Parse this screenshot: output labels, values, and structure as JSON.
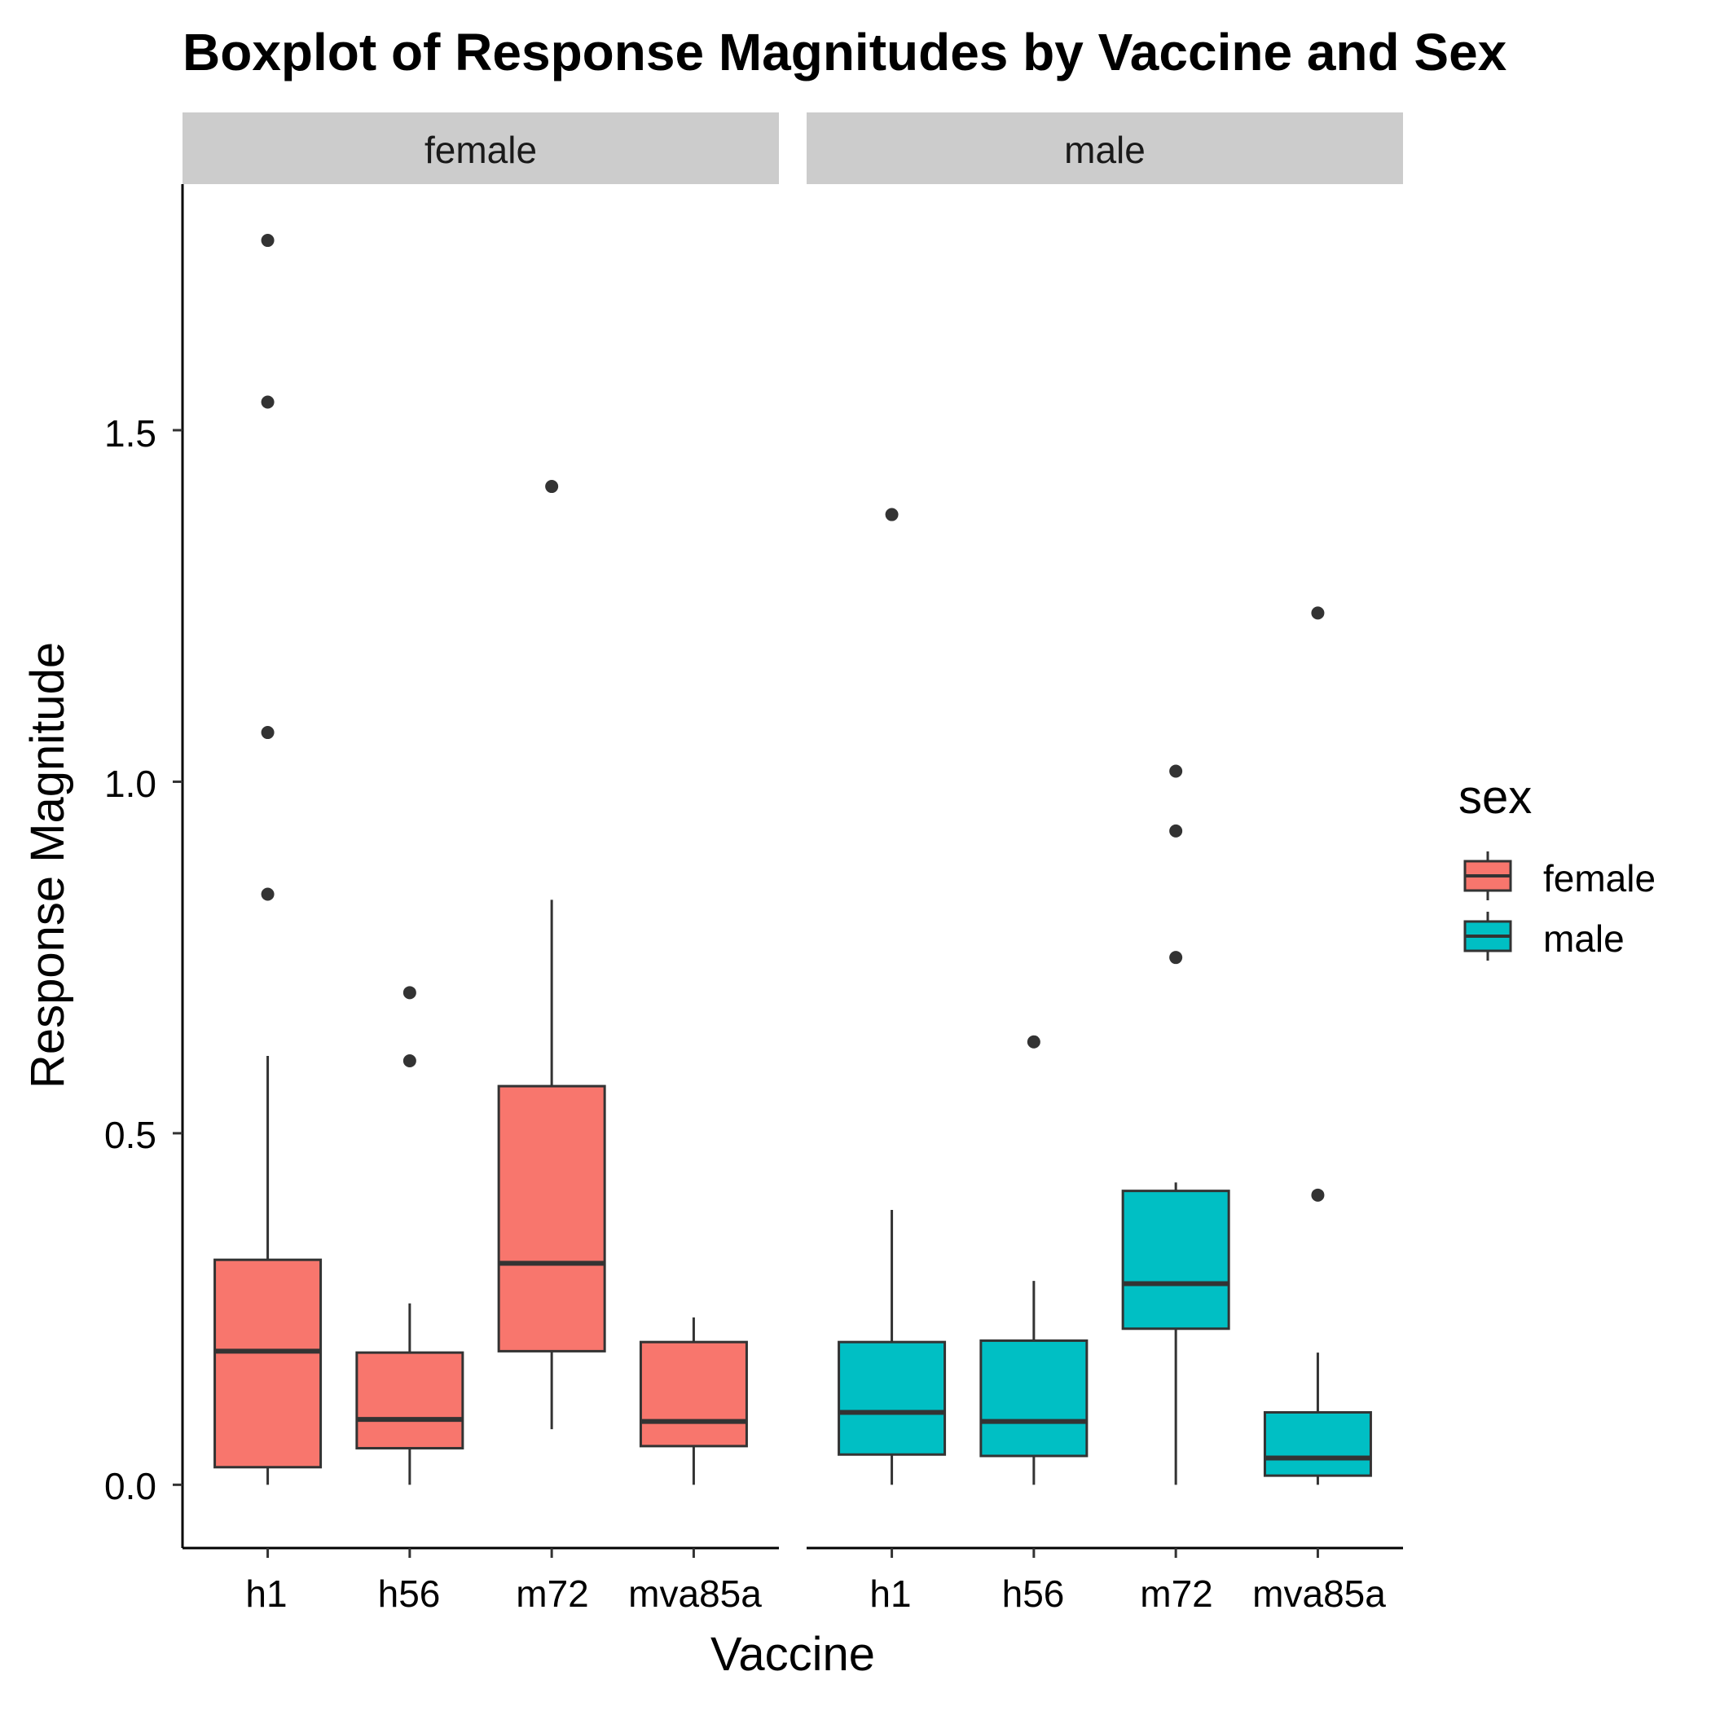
{
  "chart_data": {
    "type": "boxplot",
    "title": "Boxplot of Response Magnitudes by Vaccine and Sex",
    "xlabel": "Vaccine",
    "ylabel": "Response Magnitude",
    "ylim": [
      -0.09,
      1.85
    ],
    "yticks": [
      0.0,
      0.5,
      1.0,
      1.5
    ],
    "ytick_labels": [
      "0.0",
      "0.5",
      "1.0",
      "1.5"
    ],
    "categories": [
      "h1",
      "h56",
      "m72",
      "mva85a"
    ],
    "facets": [
      "female",
      "male"
    ],
    "legend": {
      "title": "sex",
      "position": "right",
      "entries": [
        "female",
        "male"
      ]
    },
    "grid": false,
    "colors": {
      "female": "#F8766D",
      "male": "#00BFC4",
      "outline": "#333333",
      "strip": "#CCCCCC"
    },
    "series": [
      {
        "name": "female",
        "boxes": [
          {
            "category": "h1",
            "whisker_low": 0.0,
            "q1": 0.025,
            "median": 0.19,
            "q3": 0.32,
            "whisker_high": 0.61,
            "outliers": [
              0.84,
              1.07,
              1.54,
              1.77
            ]
          },
          {
            "category": "h56",
            "whisker_low": 0.0,
            "q1": 0.052,
            "median": 0.093,
            "q3": 0.188,
            "whisker_high": 0.258,
            "outliers": [
              0.603,
              0.7
            ]
          },
          {
            "category": "m72",
            "whisker_low": 0.079,
            "q1": 0.19,
            "median": 0.315,
            "q3": 0.567,
            "whisker_high": 0.832,
            "outliers": [
              1.42
            ]
          },
          {
            "category": "mva85a",
            "whisker_low": 0.0,
            "q1": 0.055,
            "median": 0.09,
            "q3": 0.203,
            "whisker_high": 0.238,
            "outliers": []
          }
        ]
      },
      {
        "name": "male",
        "boxes": [
          {
            "category": "h1",
            "whisker_low": 0.0,
            "q1": 0.043,
            "median": 0.103,
            "q3": 0.203,
            "whisker_high": 0.391,
            "outliers": [
              1.38
            ]
          },
          {
            "category": "h56",
            "whisker_low": 0.0,
            "q1": 0.041,
            "median": 0.09,
            "q3": 0.205,
            "whisker_high": 0.29,
            "outliers": [
              0.63
            ]
          },
          {
            "category": "m72",
            "whisker_low": 0.0,
            "q1": 0.222,
            "median": 0.286,
            "q3": 0.418,
            "whisker_high": 0.43,
            "outliers": [
              0.75,
              0.93,
              1.015
            ]
          },
          {
            "category": "mva85a",
            "whisker_low": 0.0,
            "q1": 0.013,
            "median": 0.038,
            "q3": 0.103,
            "whisker_high": 0.188,
            "outliers": [
              0.412,
              1.24
            ]
          }
        ]
      }
    ]
  }
}
